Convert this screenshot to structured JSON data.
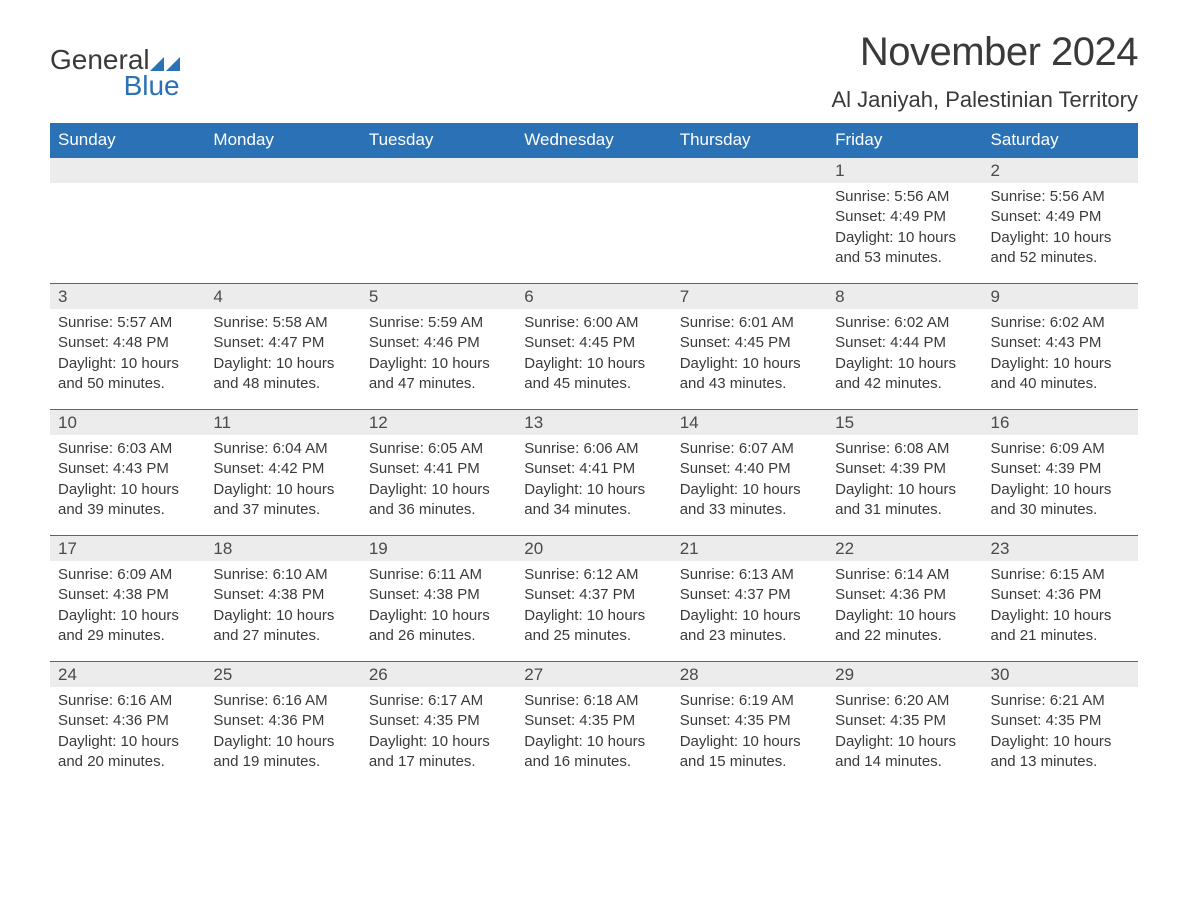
{
  "brand": {
    "part1": "General",
    "part2": "Blue"
  },
  "title": "November 2024",
  "subtitle": "Al Janiyah, Palestinian Territory",
  "colors": {
    "accent": "#2a72b5",
    "daynum_bg": "#ececec",
    "text": "#3a3a3a",
    "background": "#ffffff"
  },
  "calendar": {
    "headers": [
      "Sunday",
      "Monday",
      "Tuesday",
      "Wednesday",
      "Thursday",
      "Friday",
      "Saturday"
    ],
    "first_weekday_index": 5,
    "days": [
      {
        "n": 1,
        "sunrise": "5:56 AM",
        "sunset": "4:49 PM",
        "daylight": "10 hours and 53 minutes."
      },
      {
        "n": 2,
        "sunrise": "5:56 AM",
        "sunset": "4:49 PM",
        "daylight": "10 hours and 52 minutes."
      },
      {
        "n": 3,
        "sunrise": "5:57 AM",
        "sunset": "4:48 PM",
        "daylight": "10 hours and 50 minutes."
      },
      {
        "n": 4,
        "sunrise": "5:58 AM",
        "sunset": "4:47 PM",
        "daylight": "10 hours and 48 minutes."
      },
      {
        "n": 5,
        "sunrise": "5:59 AM",
        "sunset": "4:46 PM",
        "daylight": "10 hours and 47 minutes."
      },
      {
        "n": 6,
        "sunrise": "6:00 AM",
        "sunset": "4:45 PM",
        "daylight": "10 hours and 45 minutes."
      },
      {
        "n": 7,
        "sunrise": "6:01 AM",
        "sunset": "4:45 PM",
        "daylight": "10 hours and 43 minutes."
      },
      {
        "n": 8,
        "sunrise": "6:02 AM",
        "sunset": "4:44 PM",
        "daylight": "10 hours and 42 minutes."
      },
      {
        "n": 9,
        "sunrise": "6:02 AM",
        "sunset": "4:43 PM",
        "daylight": "10 hours and 40 minutes."
      },
      {
        "n": 10,
        "sunrise": "6:03 AM",
        "sunset": "4:43 PM",
        "daylight": "10 hours and 39 minutes."
      },
      {
        "n": 11,
        "sunrise": "6:04 AM",
        "sunset": "4:42 PM",
        "daylight": "10 hours and 37 minutes."
      },
      {
        "n": 12,
        "sunrise": "6:05 AM",
        "sunset": "4:41 PM",
        "daylight": "10 hours and 36 minutes."
      },
      {
        "n": 13,
        "sunrise": "6:06 AM",
        "sunset": "4:41 PM",
        "daylight": "10 hours and 34 minutes."
      },
      {
        "n": 14,
        "sunrise": "6:07 AM",
        "sunset": "4:40 PM",
        "daylight": "10 hours and 33 minutes."
      },
      {
        "n": 15,
        "sunrise": "6:08 AM",
        "sunset": "4:39 PM",
        "daylight": "10 hours and 31 minutes."
      },
      {
        "n": 16,
        "sunrise": "6:09 AM",
        "sunset": "4:39 PM",
        "daylight": "10 hours and 30 minutes."
      },
      {
        "n": 17,
        "sunrise": "6:09 AM",
        "sunset": "4:38 PM",
        "daylight": "10 hours and 29 minutes."
      },
      {
        "n": 18,
        "sunrise": "6:10 AM",
        "sunset": "4:38 PM",
        "daylight": "10 hours and 27 minutes."
      },
      {
        "n": 19,
        "sunrise": "6:11 AM",
        "sunset": "4:38 PM",
        "daylight": "10 hours and 26 minutes."
      },
      {
        "n": 20,
        "sunrise": "6:12 AM",
        "sunset": "4:37 PM",
        "daylight": "10 hours and 25 minutes."
      },
      {
        "n": 21,
        "sunrise": "6:13 AM",
        "sunset": "4:37 PM",
        "daylight": "10 hours and 23 minutes."
      },
      {
        "n": 22,
        "sunrise": "6:14 AM",
        "sunset": "4:36 PM",
        "daylight": "10 hours and 22 minutes."
      },
      {
        "n": 23,
        "sunrise": "6:15 AM",
        "sunset": "4:36 PM",
        "daylight": "10 hours and 21 minutes."
      },
      {
        "n": 24,
        "sunrise": "6:16 AM",
        "sunset": "4:36 PM",
        "daylight": "10 hours and 20 minutes."
      },
      {
        "n": 25,
        "sunrise": "6:16 AM",
        "sunset": "4:36 PM",
        "daylight": "10 hours and 19 minutes."
      },
      {
        "n": 26,
        "sunrise": "6:17 AM",
        "sunset": "4:35 PM",
        "daylight": "10 hours and 17 minutes."
      },
      {
        "n": 27,
        "sunrise": "6:18 AM",
        "sunset": "4:35 PM",
        "daylight": "10 hours and 16 minutes."
      },
      {
        "n": 28,
        "sunrise": "6:19 AM",
        "sunset": "4:35 PM",
        "daylight": "10 hours and 15 minutes."
      },
      {
        "n": 29,
        "sunrise": "6:20 AM",
        "sunset": "4:35 PM",
        "daylight": "10 hours and 14 minutes."
      },
      {
        "n": 30,
        "sunrise": "6:21 AM",
        "sunset": "4:35 PM",
        "daylight": "10 hours and 13 minutes."
      }
    ],
    "labels": {
      "sunrise_prefix": "Sunrise: ",
      "sunset_prefix": "Sunset: ",
      "daylight_prefix": "Daylight: "
    }
  }
}
